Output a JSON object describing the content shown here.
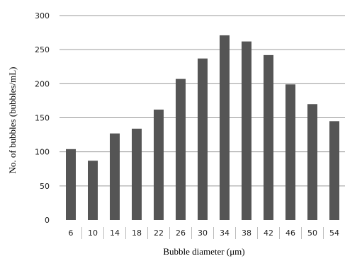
{
  "chart_data": {
    "type": "bar",
    "categories": [
      "6",
      "10",
      "14",
      "18",
      "22",
      "26",
      "30",
      "34",
      "38",
      "42",
      "46",
      "50",
      "54"
    ],
    "values": [
      104,
      87,
      127,
      134,
      162,
      207,
      237,
      271,
      262,
      242,
      199,
      170,
      145
    ],
    "xlabel": "Bubble diameter (μm)",
    "ylabel": "No. of bubbles (bubbles/mL)",
    "ylim": [
      0,
      300
    ],
    "yticks": [
      "0",
      "50",
      "100",
      "150",
      "200",
      "250",
      "300"
    ],
    "grid": true,
    "legend": "none",
    "bar_color": "#555555",
    "grid_color": "#9a9a9a"
  }
}
